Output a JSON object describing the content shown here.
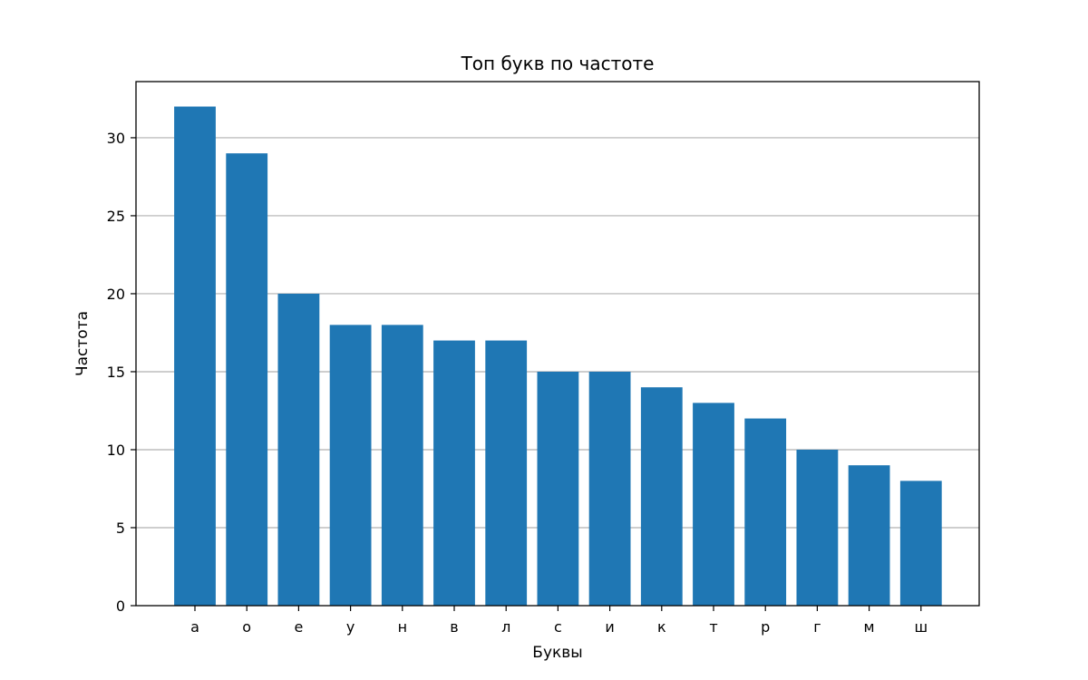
{
  "chart_data": {
    "type": "bar",
    "title": "Топ букв по частоте",
    "xlabel": "Буквы",
    "ylabel": "Частота",
    "categories": [
      "а",
      "о",
      "е",
      "у",
      "н",
      "в",
      "л",
      "с",
      "и",
      "к",
      "т",
      "р",
      "г",
      "м",
      "ш"
    ],
    "values": [
      32,
      29,
      20,
      18,
      18,
      17,
      17,
      15,
      15,
      14,
      13,
      12,
      10,
      9,
      8
    ],
    "ylim": [
      0,
      33.6
    ],
    "yticks": [
      0,
      5,
      10,
      15,
      20,
      25,
      30
    ],
    "grid": "y",
    "legend": "none",
    "bar_color": "#1f77b4",
    "grid_color": "#b0b0b0"
  }
}
